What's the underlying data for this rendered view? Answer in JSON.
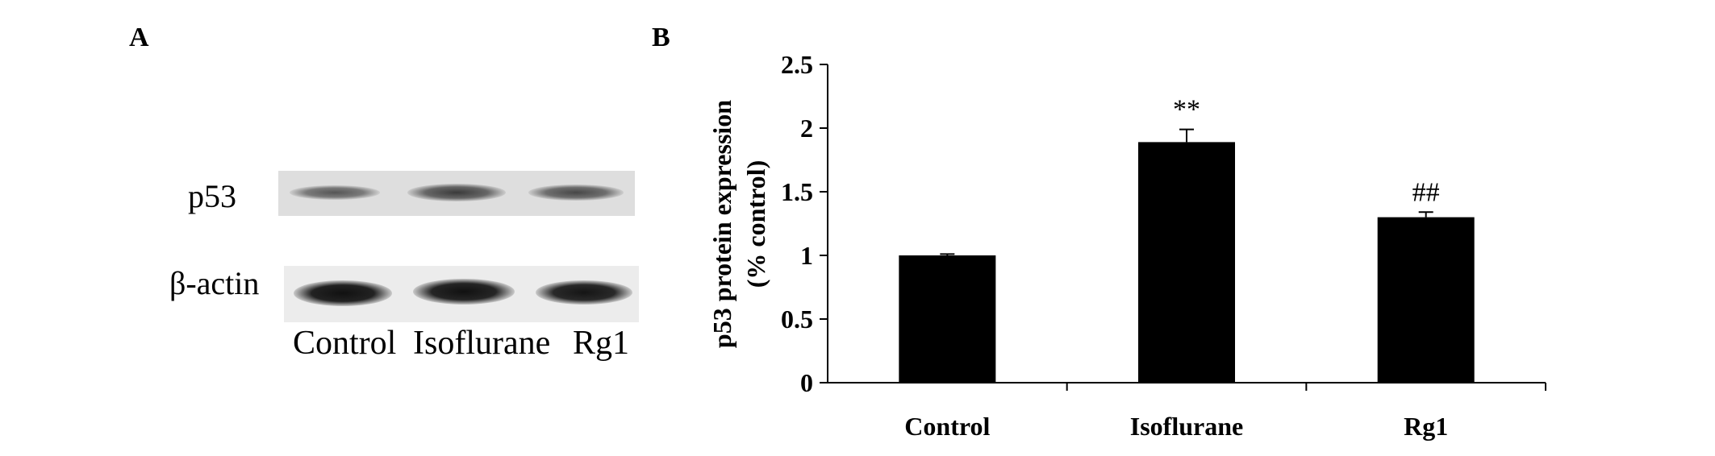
{
  "panel_a": {
    "letter": "A",
    "blot_labels": {
      "top": "p53",
      "bottom": "β-actin"
    },
    "lanes": [
      "Control",
      "Isoflurane",
      "Rg1"
    ]
  },
  "panel_b": {
    "letter": "B"
  },
  "chart_data": {
    "type": "bar",
    "categories": [
      "Control",
      "Isoflurane",
      "Rg1"
    ],
    "values": [
      1.0,
      1.89,
      1.3
    ],
    "errors": [
      0.01,
      0.1,
      0.04
    ],
    "annotations": [
      "",
      "**",
      "##"
    ],
    "title": "",
    "xlabel": "",
    "ylabel": "p53 protein expression (% control)",
    "ylabel_lines": [
      "p53 protein expression",
      "(% control)"
    ],
    "ylim": [
      0,
      2.5
    ],
    "yticks": [
      0,
      0.5,
      1,
      1.5,
      2,
      2.5
    ],
    "ytick_labels": [
      "0",
      "0.5",
      "1",
      "1.5",
      "2",
      "2.5"
    ],
    "bar_color": "#000000",
    "grid": false
  }
}
